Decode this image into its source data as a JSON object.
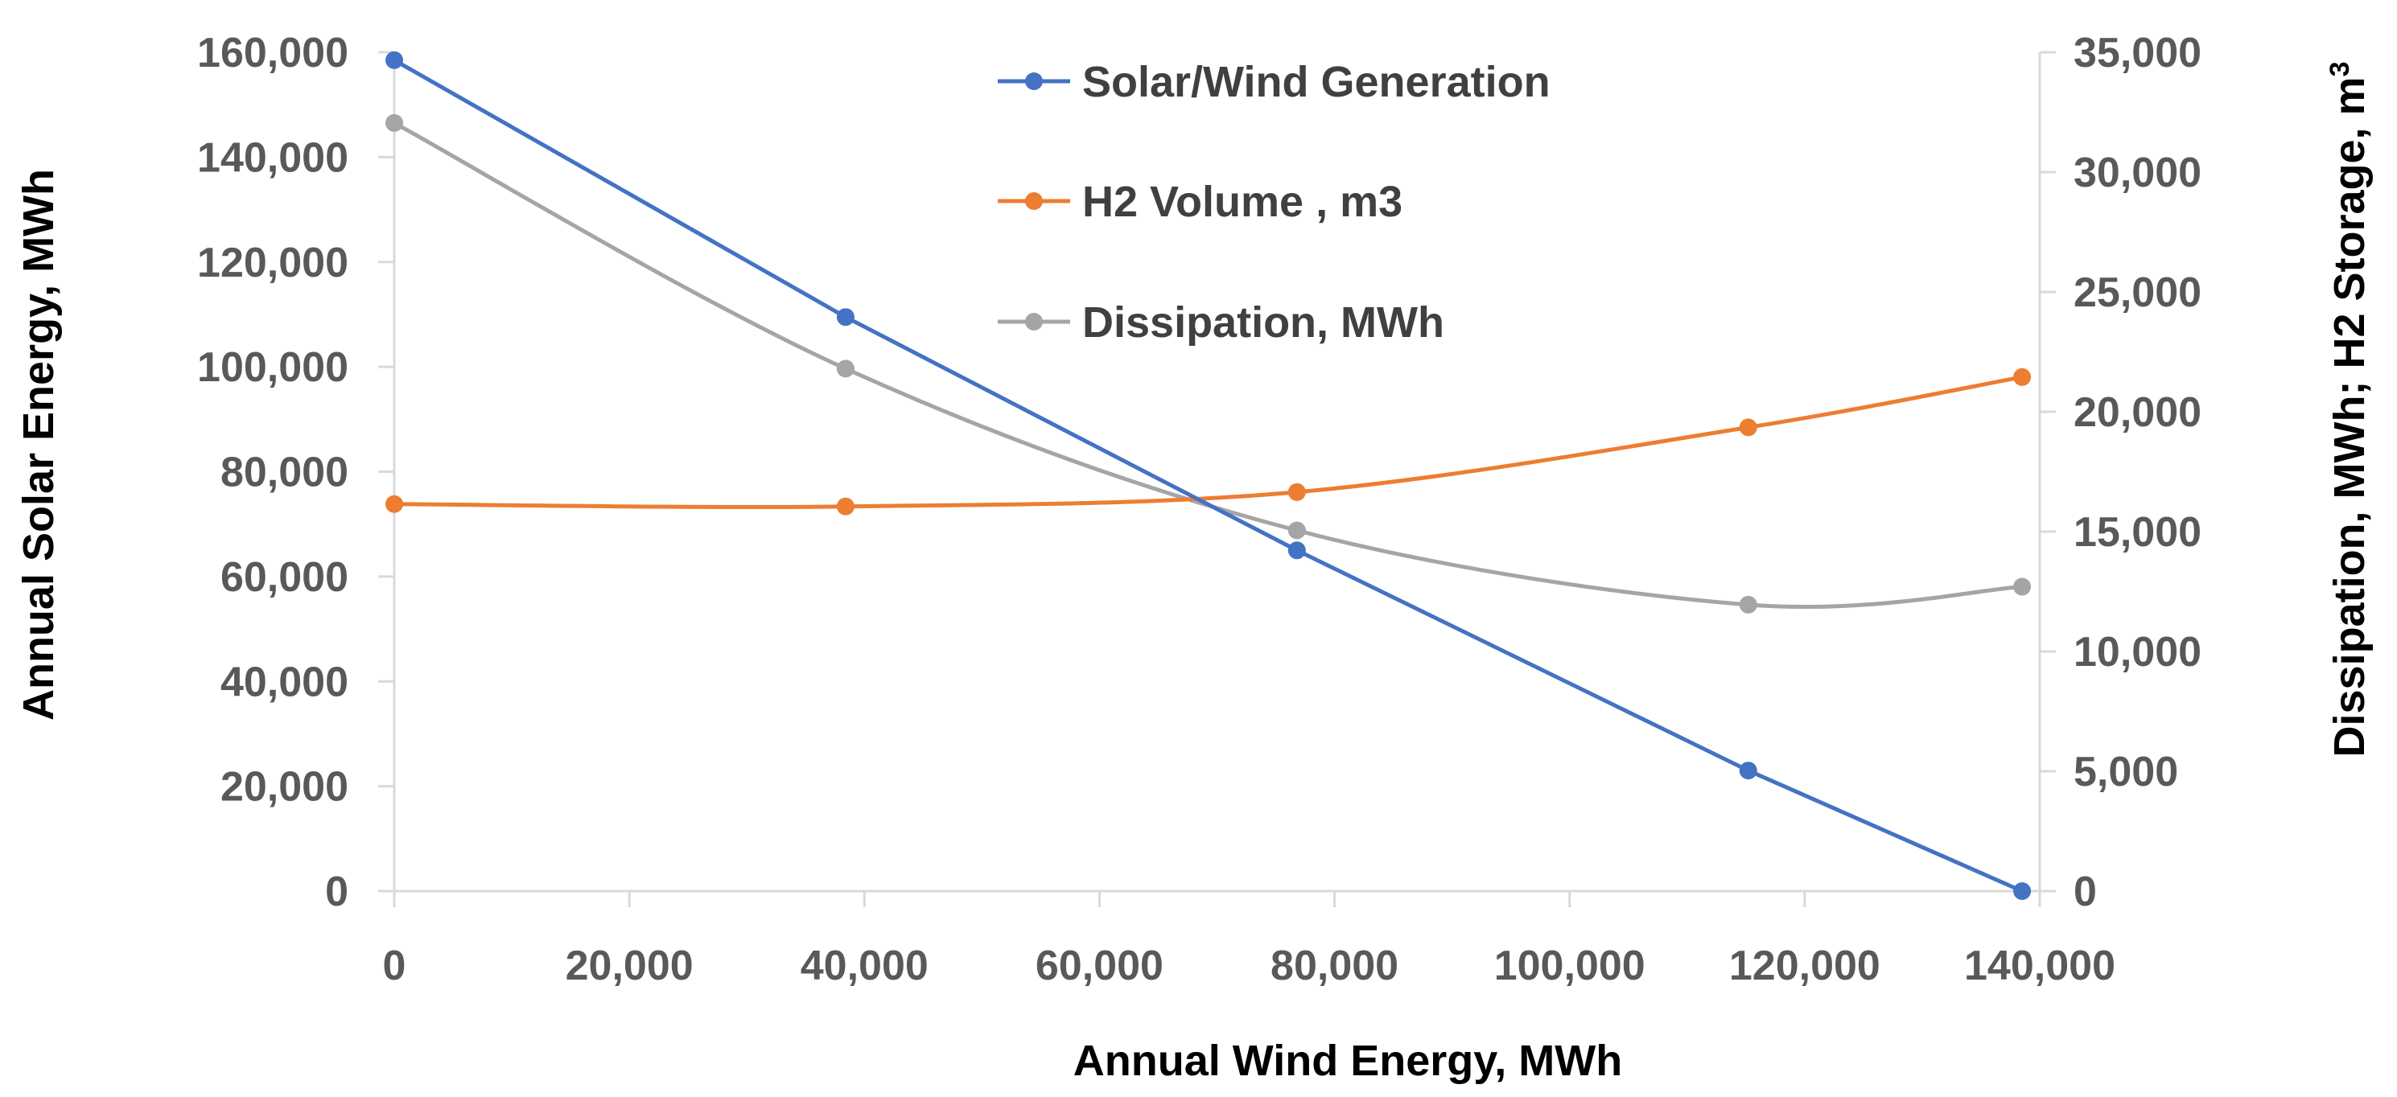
{
  "chart_data": {
    "type": "line",
    "title": "",
    "xlabel": "Annual Wind Energy, MWh",
    "ylabel_left": "Annual Solar Energy, MWh",
    "ylabel_right": "Dissipation, MWh; H2 Storage, m",
    "ylabel_right_superscript": "3",
    "xlim": [
      0,
      140000
    ],
    "ylim_left": [
      0,
      160000
    ],
    "ylim_right": [
      0,
      35000
    ],
    "x_ticks": [
      "0",
      "20,000",
      "40,000",
      "60,000",
      "80,000",
      "100,000",
      "120,000",
      "140,000"
    ],
    "y_left_ticks": [
      "0",
      "20,000",
      "40,000",
      "60,000",
      "80,000",
      "100,000",
      "120,000",
      "140,000",
      "160,000"
    ],
    "y_right_ticks": [
      "0",
      "5,000",
      "10,000",
      "15,000",
      "20,000",
      "25,000",
      "30,000",
      "35,000"
    ],
    "grid": false,
    "legend_position": "top-center",
    "series": [
      {
        "name": "Solar/Wind Generation",
        "axis": "left",
        "color": "#4472C4",
        "smooth": false,
        "x": [
          0,
          38400,
          76800,
          115200,
          138500
        ],
        "values": [
          158500,
          109500,
          65000,
          23000,
          0
        ]
      },
      {
        "name": "H2 Volume , m3",
        "axis": "right",
        "color": "#ED7D31",
        "smooth": true,
        "x": [
          0,
          38400,
          76800,
          115200,
          138500
        ],
        "values": [
          16150,
          16050,
          16650,
          19350,
          21450
        ]
      },
      {
        "name": "Dissipation, MWh",
        "axis": "right",
        "color": "#A5A5A5",
        "smooth": true,
        "x": [
          0,
          38400,
          76800,
          115200,
          138500
        ],
        "values": [
          32050,
          21800,
          15050,
          11950,
          12700
        ]
      }
    ]
  }
}
